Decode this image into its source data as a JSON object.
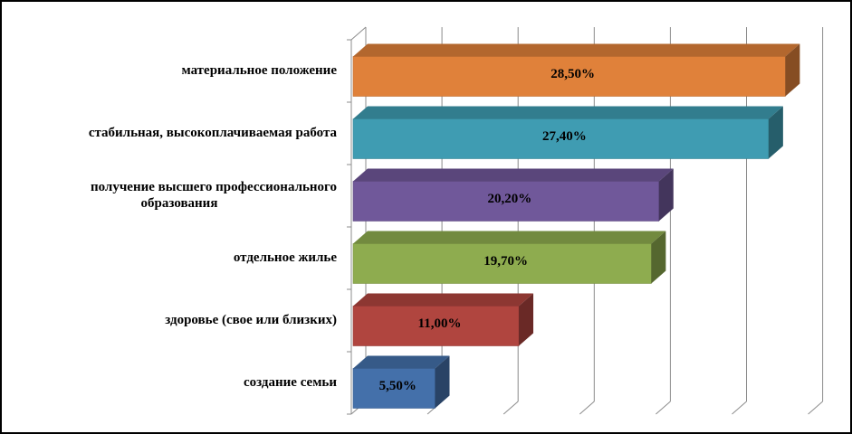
{
  "chart_data": {
    "type": "bar",
    "orientation": "horizontal",
    "style": "3d",
    "categories": [
      [
        "материальное положение"
      ],
      [
        "стабильная, высокоплачиваемая работа"
      ],
      [
        "получение высшего профессионального",
        "образования"
      ],
      [
        "отдельное жилье"
      ],
      [
        "здоровье (свое или близких)"
      ],
      [
        "создание семьи"
      ]
    ],
    "values": [
      28.5,
      27.4,
      20.2,
      19.7,
      11.0,
      5.5
    ],
    "value_labels": [
      "28,50%",
      "27,40%",
      "20,20%",
      "19,70%",
      "11,00%",
      "5,50%"
    ],
    "colors": [
      "#e0813a",
      "#3f9cb2",
      "#70589a",
      "#8eac4f",
      "#b0453f",
      "#4470aa"
    ],
    "xlim": [
      0,
      31
    ],
    "grid": true,
    "legend": false
  }
}
